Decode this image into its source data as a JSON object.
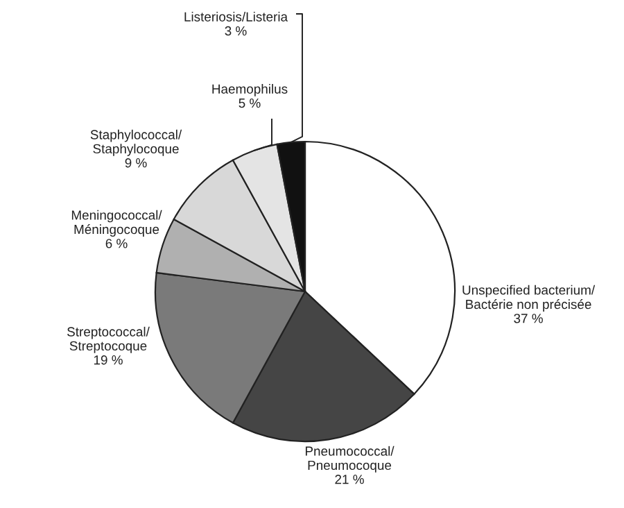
{
  "chart_data": {
    "type": "pie",
    "categories": [
      "Unspecified bacterium/\nBactérie non précisée",
      "Pneumococcal/\nPneumocoque",
      "Streptococcal/\nStreptocoque",
      "Meningococcal/\nMéningocoque",
      "Staphylococcal/\nStaphylocoque",
      "Haemophilus",
      "Listeriosis/Listeria"
    ],
    "values": [
      37,
      21,
      19,
      6,
      9,
      5,
      3
    ],
    "value_labels": [
      "37 %",
      "21 %",
      "19 %",
      "6 %",
      "9 %",
      "5 %",
      "3 %"
    ],
    "colors": [
      "#ffffff",
      "#454545",
      "#7a7a7a",
      "#b0b0b0",
      "#d8d8d8",
      "#e4e4e4",
      "#111111"
    ]
  }
}
